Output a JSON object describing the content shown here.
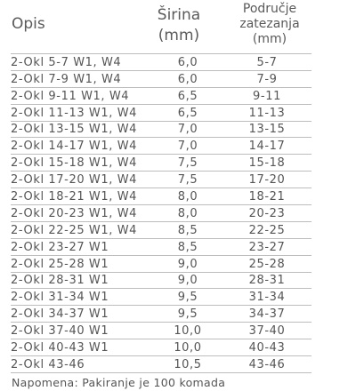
{
  "header": {
    "opis": "Opis",
    "sirina_line1": "Širina",
    "sirina_line2": "(mm)",
    "podrucje_line1": "Područje",
    "podrucje_line2": "zatezanja",
    "podrucje_line3": "(mm)"
  },
  "rows": [
    {
      "opis": "2-Okl 5-7 W1, W4",
      "sirina": "6,0",
      "range": "5-7"
    },
    {
      "opis": "2-Okl 7-9 W1, W4",
      "sirina": "6,0",
      "range": "7-9"
    },
    {
      "opis": "2-Okl 9-11 W1, W4",
      "sirina": "6,5",
      "range": "9-11"
    },
    {
      "opis": "2-Okl 11-13 W1, W4",
      "sirina": "6,5",
      "range": "11-13"
    },
    {
      "opis": "2-Okl 13-15 W1, W4",
      "sirina": "7,0",
      "range": "13-15"
    },
    {
      "opis": "2-Okl 14-17 W1, W4",
      "sirina": "7,0",
      "range": "14-17"
    },
    {
      "opis": "2-Okl 15-18 W1, W4",
      "sirina": "7,5",
      "range": "15-18"
    },
    {
      "opis": "2-Okl 17-20 W1, W4",
      "sirina": "7,5",
      "range": "17-20"
    },
    {
      "opis": "2-Okl 18-21 W1, W4",
      "sirina": "8,0",
      "range": "18-21"
    },
    {
      "opis": "2-Okl 20-23 W1, W4",
      "sirina": "8,0",
      "range": "20-23"
    },
    {
      "opis": "2-Okl 22-25 W1, W4",
      "sirina": "8,5",
      "range": "22-25"
    },
    {
      "opis": "2-Okl 23-27 W1",
      "sirina": "8,5",
      "range": "23-27"
    },
    {
      "opis": "2-Okl 25-28 W1",
      "sirina": "9,0",
      "range": "25-28"
    },
    {
      "opis": "2-Okl 28-31 W1",
      "sirina": "9,0",
      "range": "28-31"
    },
    {
      "opis": "2-Okl 31-34 W1",
      "sirina": "9,5",
      "range": "31-34"
    },
    {
      "opis": "2-Okl 34-37 W1",
      "sirina": "9,5",
      "range": "34-37"
    },
    {
      "opis": "2-Okl 37-40 W1",
      "sirina": "10,0",
      "range": "37-40"
    },
    {
      "opis": "2-Okl 40-43 W1",
      "sirina": "10,0",
      "range": "40-43"
    },
    {
      "opis": "2-Okl 43-46",
      "sirina": "10,5",
      "range": "43-46"
    }
  ],
  "note": "Napomena: Pakiranje je 100 komada"
}
